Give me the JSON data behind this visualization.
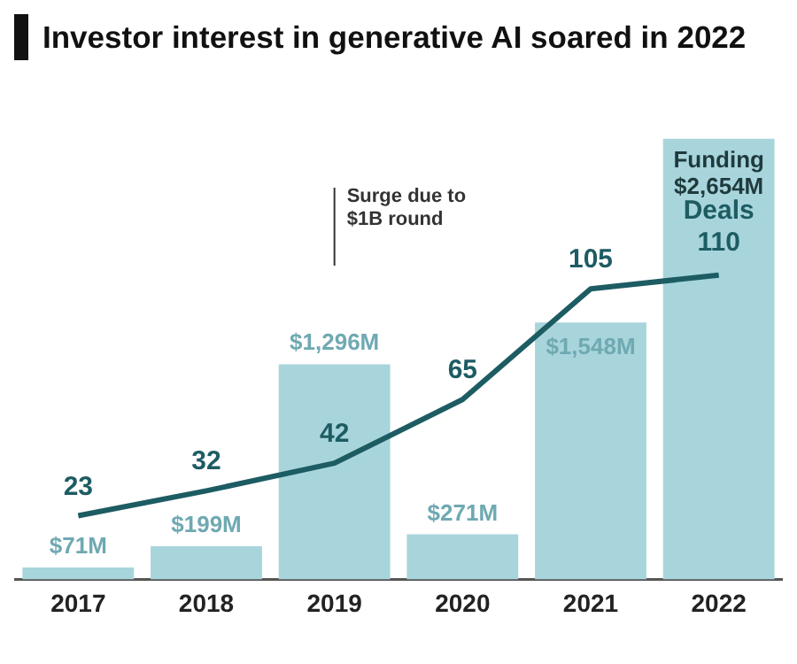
{
  "chart_data": {
    "type": "bar",
    "title": "Investor interest in generative AI soared in 2022",
    "categories": [
      "2017",
      "2018",
      "2019",
      "2020",
      "2021",
      "2022"
    ],
    "series": [
      {
        "name": "Funding",
        "type": "bar",
        "color": "#a8d5dc",
        "values": [
          71,
          199,
          1296,
          271,
          1548,
          2654
        ],
        "value_labels": [
          "$71M",
          "$199M",
          "$1,296M",
          "$271M",
          "$1,548M",
          "$2,654M"
        ]
      },
      {
        "name": "Deals",
        "type": "line",
        "axis": "y2",
        "color": "#1d5c63",
        "values": [
          23,
          32,
          42,
          65,
          105,
          110
        ]
      }
    ],
    "data_labels": true,
    "grid": false,
    "legend": false,
    "tick_labels": "x",
    "annotations": [
      "Surge due to $1B round"
    ]
  }
}
